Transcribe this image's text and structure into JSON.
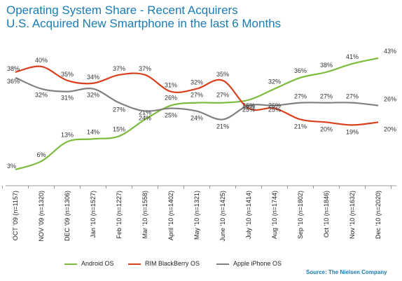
{
  "title_line1": "Operating System Share - Recent Acquirers",
  "title_line2": "U.S. Acquired New Smartphone in the last 6 Months",
  "source": "Source: The Nielsen Company",
  "chart_data": {
    "type": "line",
    "title": "Operating System Share - Recent Acquirers",
    "subtitle": "U.S. Acquired New Smartphone in the last 6 Months",
    "categories": [
      "OCT '09 (n=1157)",
      "NOV '09 (n=1320)",
      "DEC '09 (n=1306)",
      "Jan '10 (n=1527)",
      "Feb '10 (n=1227)",
      "Mar '10 (n=1558)",
      "April '10 (n=1402)",
      "May '10 (n=1321)",
      "June '10 (n=1425)",
      "July '10 (n=1414)",
      "Aug '10 (n=1744)",
      "Sep '10 (n=1802)",
      "Oct '10 (n=1846)",
      "Nov '10 (n=1632)",
      "Dec '10 (n=2020)"
    ],
    "series": [
      {
        "name": "Android OS",
        "color": "#7dbb3c",
        "values": [
          3,
          6,
          13,
          14,
          15,
          21,
          26,
          27,
          27,
          28,
          32,
          36,
          38,
          41,
          43
        ]
      },
      {
        "name": "RIM BlackBerry OS",
        "color": "#d9401f",
        "values": [
          38,
          40,
          35,
          34,
          37,
          37,
          31,
          32,
          35,
          25,
          25,
          21,
          20,
          19,
          20
        ]
      },
      {
        "name": "Apple iPhone OS",
        "color": "#808080",
        "values": [
          36,
          32,
          31,
          32,
          27,
          24,
          25,
          24,
          21,
          26,
          26,
          27,
          27,
          27,
          26
        ]
      }
    ],
    "value_suffix": "%",
    "grid": false
  }
}
